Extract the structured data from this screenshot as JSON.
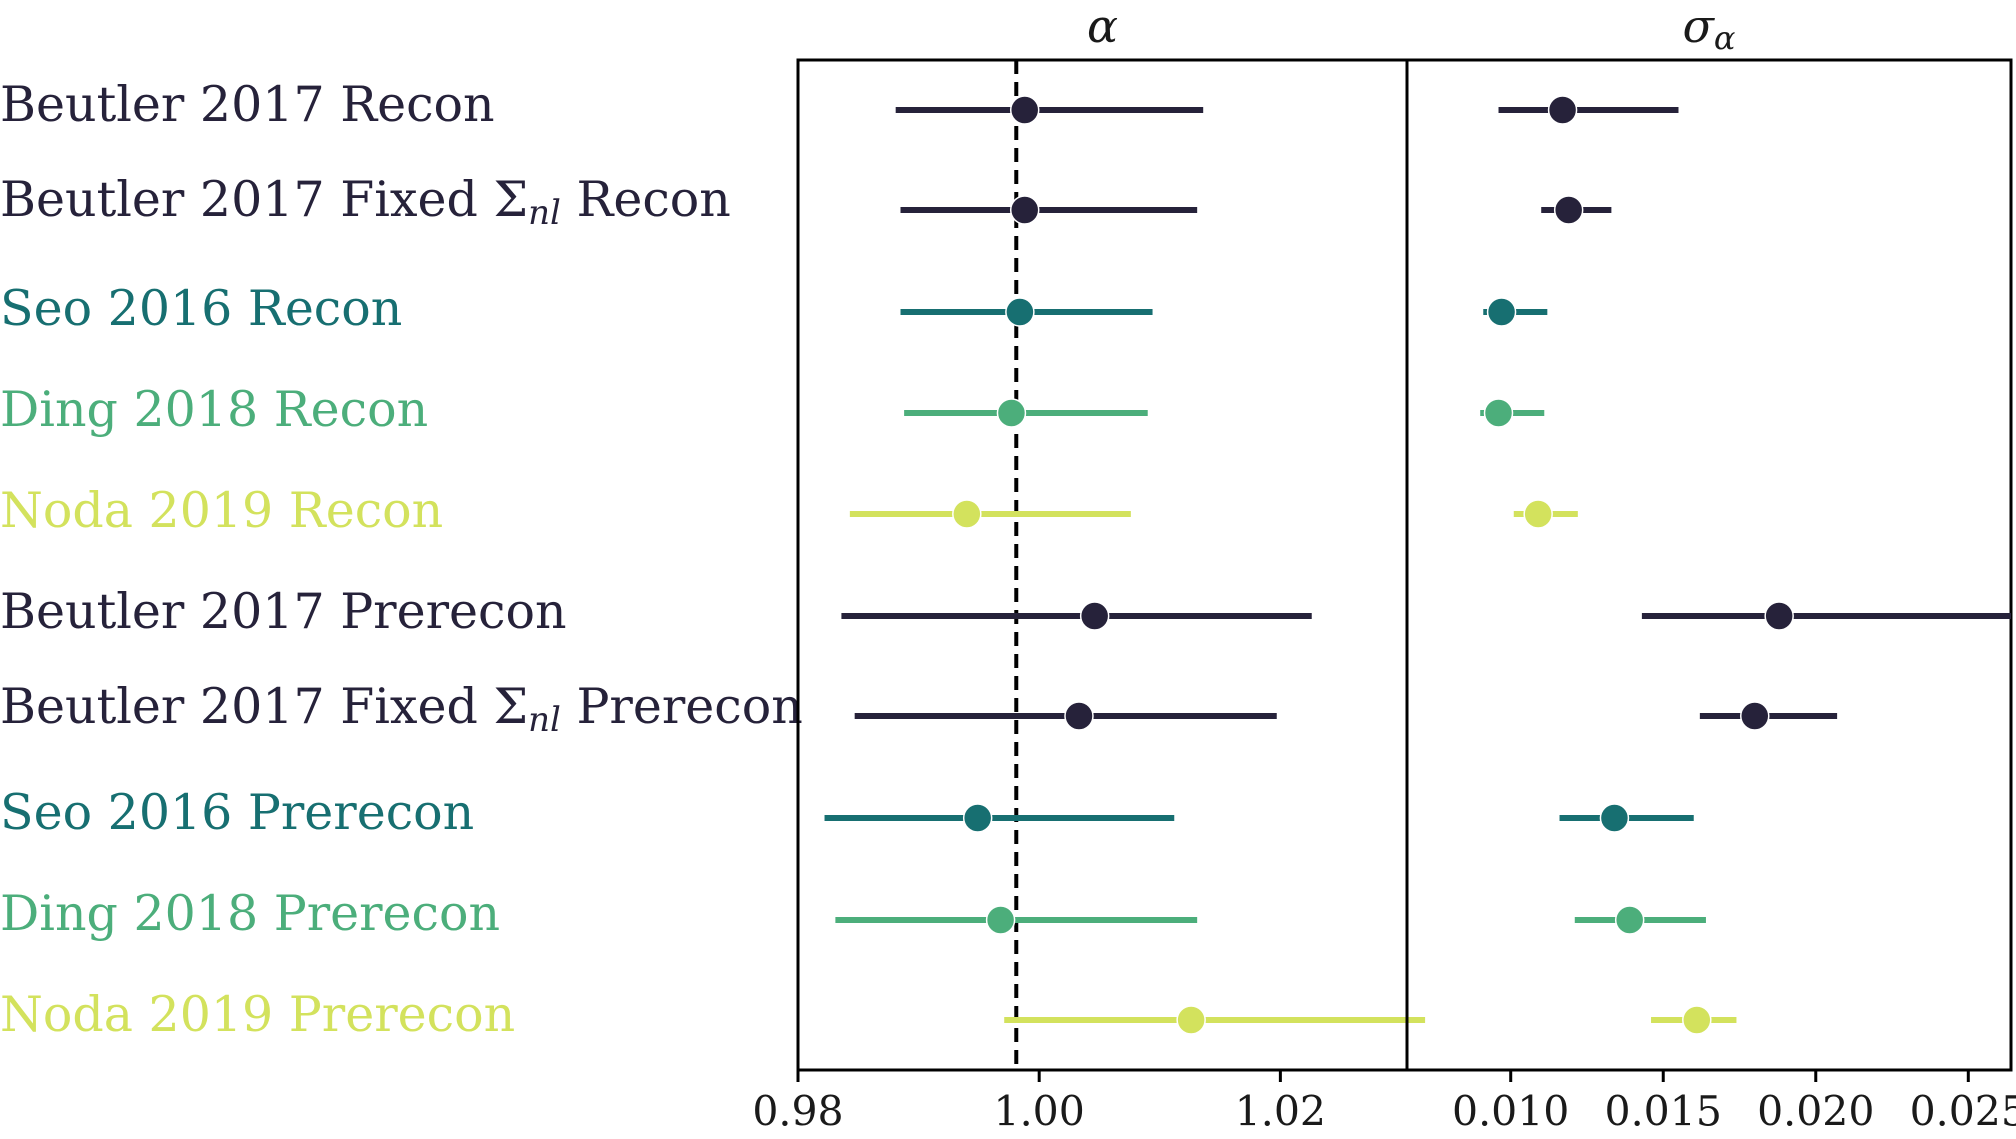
{
  "chart_data": {
    "type": "scatter",
    "style": "forest plot with horizontal error bars, two panels sharing row labels",
    "rows": [
      {
        "label": "Beutler 2017 Recon",
        "color": "#26223a"
      },
      {
        "label": "Beutler 2017 Fixed Σ",
        "label_sub": "nl",
        "label_tail": " Recon",
        "color": "#26223a"
      },
      {
        "label": "Seo 2016 Recon",
        "color": "#176f71"
      },
      {
        "label": "Ding 2018 Recon",
        "color": "#4cae7b"
      },
      {
        "label": "Noda 2019 Recon",
        "color": "#d3e25d"
      },
      {
        "label": "Beutler 2017 Prerecon",
        "color": "#26223a"
      },
      {
        "label": "Beutler 2017 Fixed Σ",
        "label_sub": "nl",
        "label_tail": " Prerecon",
        "color": "#26223a"
      },
      {
        "label": "Seo 2016 Prerecon",
        "color": "#176f71"
      },
      {
        "label": "Ding 2018 Prerecon",
        "color": "#4cae7b"
      },
      {
        "label": "Noda 2019 Prerecon",
        "color": "#d3e25d"
      }
    ],
    "panels": [
      {
        "title": "α",
        "xlim": [
          0.98,
          1.0305
        ],
        "xticks": [
          0.98,
          1.0,
          1.02
        ],
        "xtick_labels": [
          "0.98",
          "1.00",
          "1.02"
        ],
        "reference_line": 0.9981,
        "series": [
          {
            "values": [
              0.9988,
              0.9988,
              0.9984,
              0.9977,
              0.994,
              1.0046,
              1.0033,
              0.9949,
              0.9968,
              1.0126
            ],
            "lower": [
              0.9881,
              0.9885,
              0.9885,
              0.9888,
              0.9843,
              0.9836,
              0.9847,
              0.9822,
              0.9831,
              0.9971
            ],
            "upper": [
              1.0136,
              1.0131,
              1.0094,
              1.009,
              1.0076,
              1.0226,
              1.0197,
              1.0112,
              1.0131,
              1.032
            ]
          }
        ]
      },
      {
        "title": "σ",
        "title_sub": "α",
        "xlim": [
          0.0066,
          0.0264
        ],
        "xticks": [
          0.01,
          0.015,
          0.02,
          0.025
        ],
        "xtick_labels": [
          "0.010",
          "0.015",
          "0.020",
          "0.025"
        ],
        "series": [
          {
            "values": [
              0.0117,
              0.0119,
              0.0097,
              0.0096,
              0.0109,
              0.0188,
              0.018,
              0.0134,
              0.0139,
              0.0161
            ],
            "lower": [
              0.0096,
              0.011,
              0.0091,
              0.009,
              0.0101,
              0.0143,
              0.0162,
              0.0116,
              0.0121,
              0.0146
            ],
            "upper": [
              0.0155,
              0.0133,
              0.0112,
              0.0111,
              0.0122,
              0.0264,
              0.0207,
              0.016,
              0.0164,
              0.0174
            ]
          }
        ]
      }
    ],
    "grid": false,
    "legend": "row labels on left"
  }
}
